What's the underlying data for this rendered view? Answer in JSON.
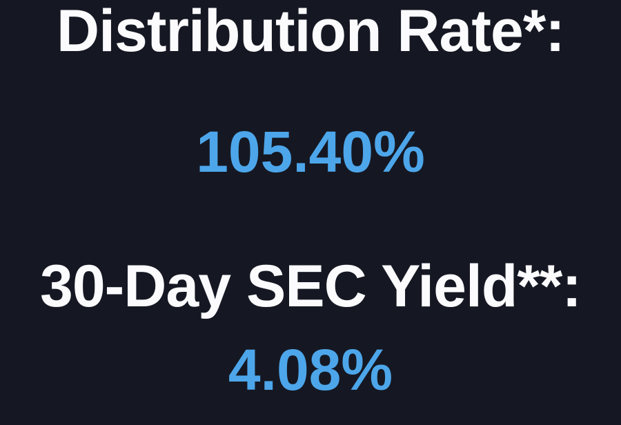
{
  "colors": {
    "background": "#151823",
    "label_text": "#fbfbfd",
    "value_text": "#4da6ea"
  },
  "stats": [
    {
      "label": "Distribution Rate*:",
      "value": "105.40%"
    },
    {
      "label": "30-Day SEC Yield**:",
      "value": "4.08%"
    }
  ]
}
